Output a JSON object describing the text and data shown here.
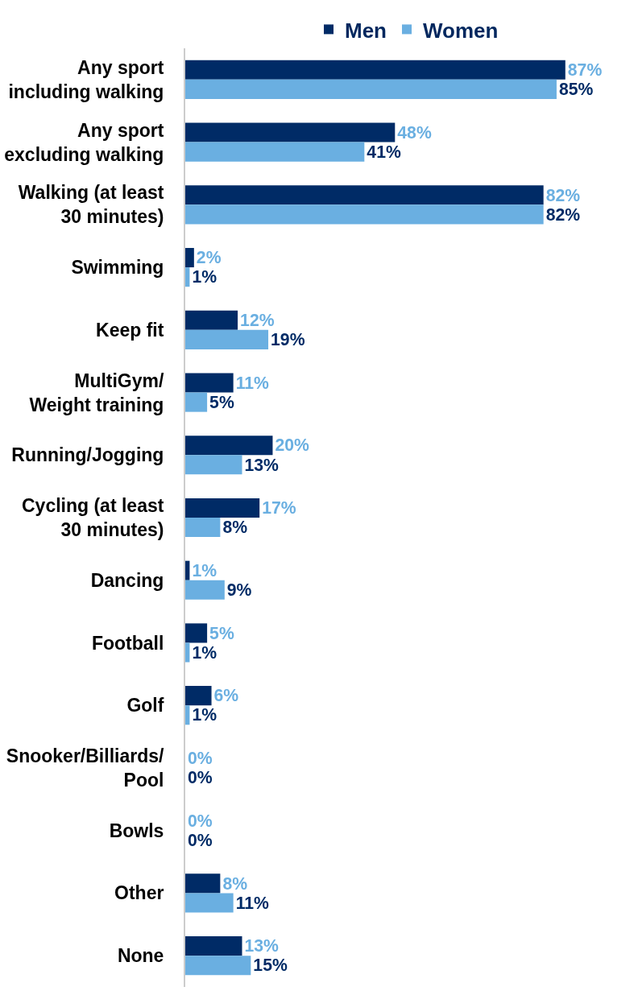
{
  "chart_data": {
    "type": "bar",
    "orientation": "horizontal",
    "legend": "top",
    "categories": [
      "Any sport\nincluding walking",
      "Any sport\nexcluding walking",
      "Walking (at least\n30 minutes)",
      "Swimming",
      "Keep fit",
      "MultiGym/\nWeight training",
      "Running/Jogging",
      "Cycling (at least\n30 minutes)",
      "Dancing",
      "Football",
      "Golf",
      "Snooker/Billiards/\nPool",
      "Bowls",
      "Other",
      "None"
    ],
    "series": [
      {
        "name": "Men",
        "color": "#002b66",
        "values": [
          87,
          48,
          82,
          2,
          12,
          11,
          20,
          17,
          1,
          5,
          6,
          0,
          0,
          8,
          13
        ],
        "value_labels": [
          "87%",
          "48%",
          "82%",
          "2%",
          "12%",
          "11%",
          "20%",
          "17%",
          "1%",
          "5%",
          "6%",
          "0%",
          "0%",
          "8%",
          "13%"
        ]
      },
      {
        "name": "Women",
        "color": "#6aafe1",
        "values": [
          85,
          41,
          82,
          1,
          19,
          5,
          13,
          8,
          9,
          1,
          1,
          0,
          0,
          11,
          15
        ],
        "value_labels": [
          "85%",
          "41%",
          "82%",
          "1%",
          "19%",
          "5%",
          "13%",
          "8%",
          "9%",
          "1%",
          "1%",
          "0%",
          "0%",
          "11%",
          "15%"
        ]
      }
    ]
  }
}
